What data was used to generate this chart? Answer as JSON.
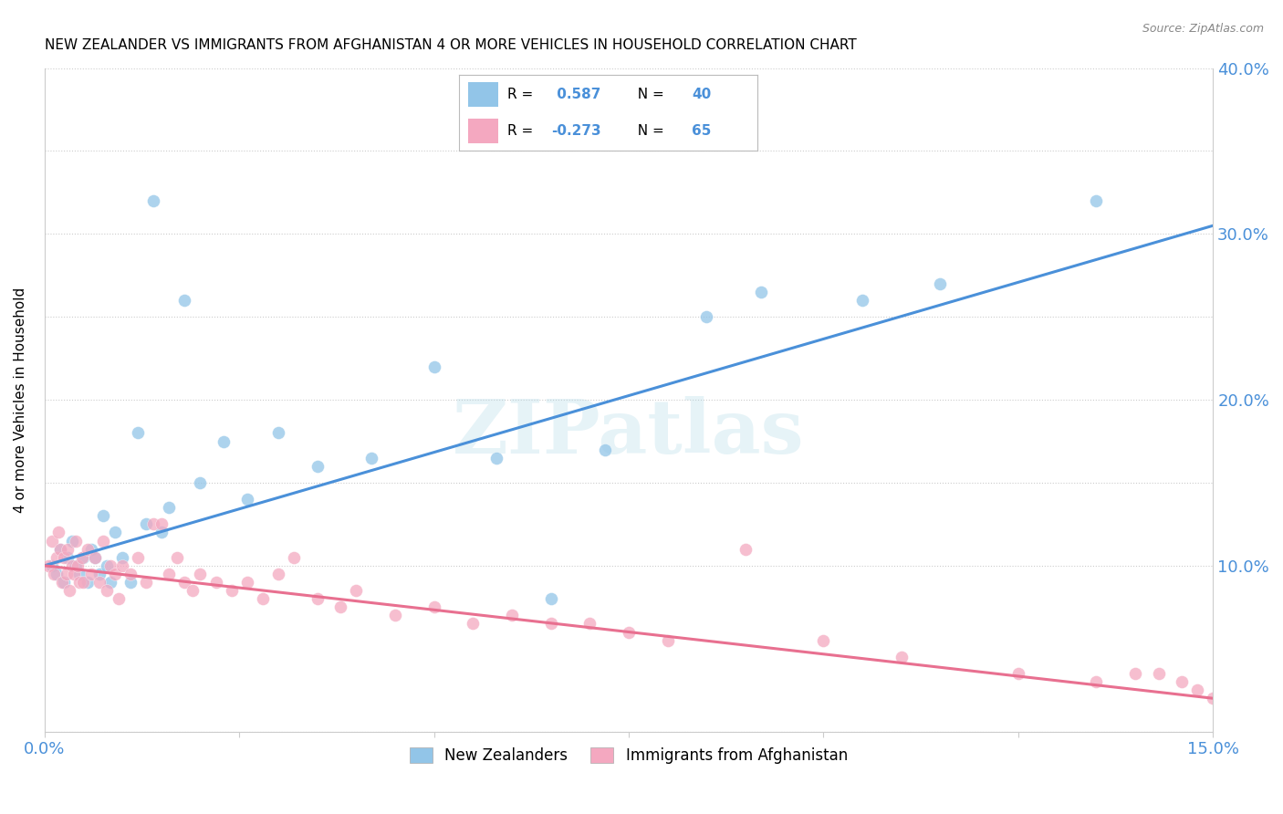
{
  "title": "NEW ZEALANDER VS IMMIGRANTS FROM AFGHANISTAN 4 OR MORE VEHICLES IN HOUSEHOLD CORRELATION CHART",
  "source": "Source: ZipAtlas.com",
  "ylabel": "4 or more Vehicles in Household",
  "legend_label1": "New Zealanders",
  "legend_label2": "Immigrants from Afghanistan",
  "R1": 0.587,
  "N1": 40,
  "R2": -0.273,
  "N2": 65,
  "color_blue": "#92C5E8",
  "color_pink": "#F4A8C0",
  "line_color_blue": "#4A90D9",
  "line_color_pink": "#E87090",
  "watermark": "ZIPatlas",
  "xlim": [
    0.0,
    15.0
  ],
  "ylim": [
    0.0,
    40.0
  ],
  "blue_x": [
    0.1,
    0.15,
    0.2,
    0.25,
    0.3,
    0.35,
    0.4,
    0.45,
    0.5,
    0.55,
    0.6,
    0.65,
    0.7,
    0.75,
    0.8,
    0.85,
    0.9,
    1.0,
    1.1,
    1.2,
    1.3,
    1.4,
    1.5,
    1.6,
    1.8,
    2.0,
    2.3,
    2.6,
    3.0,
    3.5,
    4.2,
    5.0,
    5.8,
    6.5,
    7.2,
    8.5,
    9.2,
    10.5,
    11.5,
    13.5
  ],
  "blue_y": [
    10.0,
    9.5,
    11.0,
    9.0,
    10.5,
    11.5,
    10.0,
    9.5,
    10.5,
    9.0,
    11.0,
    10.5,
    9.5,
    13.0,
    10.0,
    9.0,
    12.0,
    10.5,
    9.0,
    18.0,
    12.5,
    32.0,
    12.0,
    13.5,
    26.0,
    15.0,
    17.5,
    14.0,
    18.0,
    16.0,
    16.5,
    22.0,
    16.5,
    8.0,
    17.0,
    25.0,
    26.5,
    26.0,
    27.0,
    32.0
  ],
  "pink_x": [
    0.05,
    0.1,
    0.12,
    0.15,
    0.18,
    0.2,
    0.22,
    0.25,
    0.28,
    0.3,
    0.32,
    0.35,
    0.38,
    0.4,
    0.42,
    0.45,
    0.48,
    0.5,
    0.55,
    0.6,
    0.65,
    0.7,
    0.75,
    0.8,
    0.85,
    0.9,
    0.95,
    1.0,
    1.1,
    1.2,
    1.3,
    1.4,
    1.5,
    1.6,
    1.7,
    1.8,
    1.9,
    2.0,
    2.2,
    2.4,
    2.6,
    2.8,
    3.0,
    3.2,
    3.5,
    3.8,
    4.0,
    4.5,
    5.0,
    5.5,
    6.0,
    6.5,
    7.0,
    7.5,
    8.0,
    9.0,
    10.0,
    11.0,
    12.5,
    13.5,
    14.0,
    14.3,
    14.6,
    14.8,
    15.0
  ],
  "pink_y": [
    10.0,
    11.5,
    9.5,
    10.5,
    12.0,
    11.0,
    9.0,
    10.5,
    9.5,
    11.0,
    8.5,
    10.0,
    9.5,
    11.5,
    10.0,
    9.0,
    10.5,
    9.0,
    11.0,
    9.5,
    10.5,
    9.0,
    11.5,
    8.5,
    10.0,
    9.5,
    8.0,
    10.0,
    9.5,
    10.5,
    9.0,
    12.5,
    12.5,
    9.5,
    10.5,
    9.0,
    8.5,
    9.5,
    9.0,
    8.5,
    9.0,
    8.0,
    9.5,
    10.5,
    8.0,
    7.5,
    8.5,
    7.0,
    7.5,
    6.5,
    7.0,
    6.5,
    6.5,
    6.0,
    5.5,
    11.0,
    5.5,
    4.5,
    3.5,
    3.0,
    3.5,
    3.5,
    3.0,
    2.5,
    2.0
  ]
}
